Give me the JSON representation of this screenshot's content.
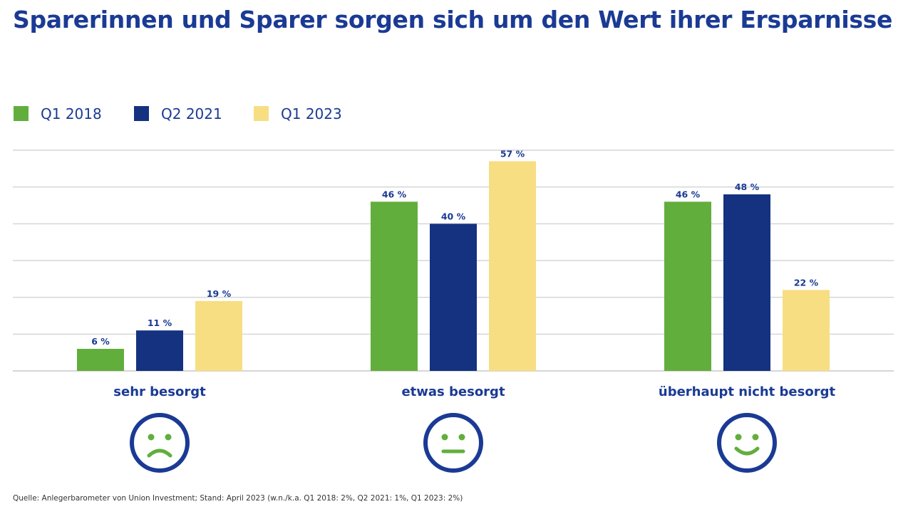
{
  "title": "Sparerinnen und Sparer sorgen sich um den Wert ihrer Ersparnisse",
  "source": "Quelle: Anlegerbarometer von Union Investment; Stand: April 2023 (w.n./k.a. Q1 2018: 2%, Q2 2021: 1%, Q1 2023: 2%)",
  "colors": {
    "title": "#1a3a94",
    "q1_2018": "#62ae3d",
    "q2_2021": "#14327f",
    "q1_2023": "#f7de82",
    "grid": "#d6d6d6",
    "face_ring": "#1a3a94",
    "face_features": "#62ae3d"
  },
  "chart_data": {
    "type": "bar",
    "title": "Sparerinnen und Sparer sorgen sich um den Wert ihrer Ersparnisse",
    "categories": [
      "sehr besorgt",
      "etwas besorgt",
      "überhaupt nicht besorgt"
    ],
    "series": [
      {
        "name": "Q1 2018",
        "values": [
          6,
          46,
          46
        ],
        "labels": [
          "6 %",
          "46 %",
          "46 %"
        ]
      },
      {
        "name": "Q2 2021",
        "values": [
          11,
          40,
          48
        ],
        "labels": [
          "11 %",
          "40 %",
          "48 %"
        ]
      },
      {
        "name": "Q1 2023",
        "values": [
          19,
          57,
          22
        ],
        "labels": [
          "19 %",
          "57 %",
          "22 %"
        ]
      }
    ],
    "ylim": [
      0,
      60
    ],
    "y_gridlines": [
      0,
      10,
      20,
      30,
      40,
      50,
      60
    ],
    "grid": true,
    "legend_position": "top-left",
    "category_icons": [
      "sad-face-icon",
      "neutral-face-icon",
      "happy-face-icon"
    ]
  }
}
